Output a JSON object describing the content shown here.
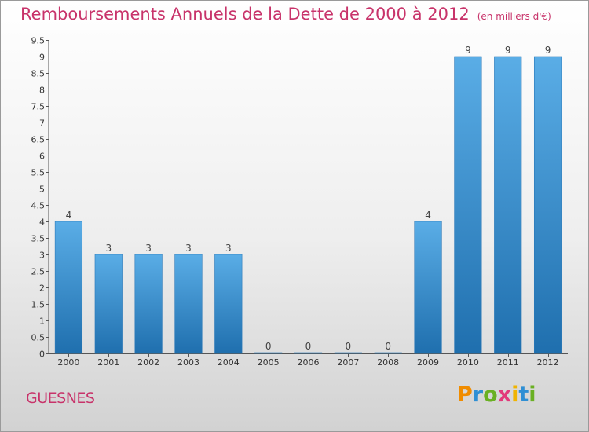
{
  "header": {
    "title": "Remboursements Annuels de la Dette de 2000 à 2012",
    "unit": "(en milliers d'€)"
  },
  "commune": "GUESNES",
  "logo": {
    "letters": [
      "P",
      "r",
      "o",
      "x",
      "i",
      "t",
      "i"
    ],
    "colors": [
      "#f08c00",
      "#2f8fd4",
      "#6ab023",
      "#e23a7a",
      "#f0b400",
      "#2f8fd4",
      "#6ab023"
    ]
  },
  "chart_data": {
    "type": "bar",
    "categories": [
      "2000",
      "2001",
      "2002",
      "2003",
      "2004",
      "2005",
      "2006",
      "2007",
      "2008",
      "2009",
      "2010",
      "2011",
      "2012"
    ],
    "values": [
      4,
      3,
      3,
      3,
      3,
      0,
      0,
      0,
      0,
      4,
      9,
      9,
      9
    ],
    "data_labels": [
      "4",
      "3",
      "3",
      "3",
      "3",
      "0",
      "0",
      "0",
      "0",
      "4",
      "9",
      "9",
      "9"
    ],
    "ylim": [
      0,
      9.5
    ],
    "yticks": [
      0,
      0.5,
      1,
      1.5,
      2,
      2.5,
      3,
      3.5,
      4,
      4.5,
      5,
      5.5,
      6,
      6.5,
      7,
      7.5,
      8,
      8.5,
      9,
      9.5
    ],
    "ytick_labels": [
      "0",
      "0.5",
      "1",
      "1.5",
      "2",
      "2.5",
      "3",
      "3.5",
      "4",
      "4.5",
      "5",
      "5.5",
      "6",
      "6.5",
      "7",
      "7.5",
      "8",
      "8.5",
      "9",
      "9.5"
    ],
    "grid": false,
    "bar_color": "#3c93d4"
  }
}
